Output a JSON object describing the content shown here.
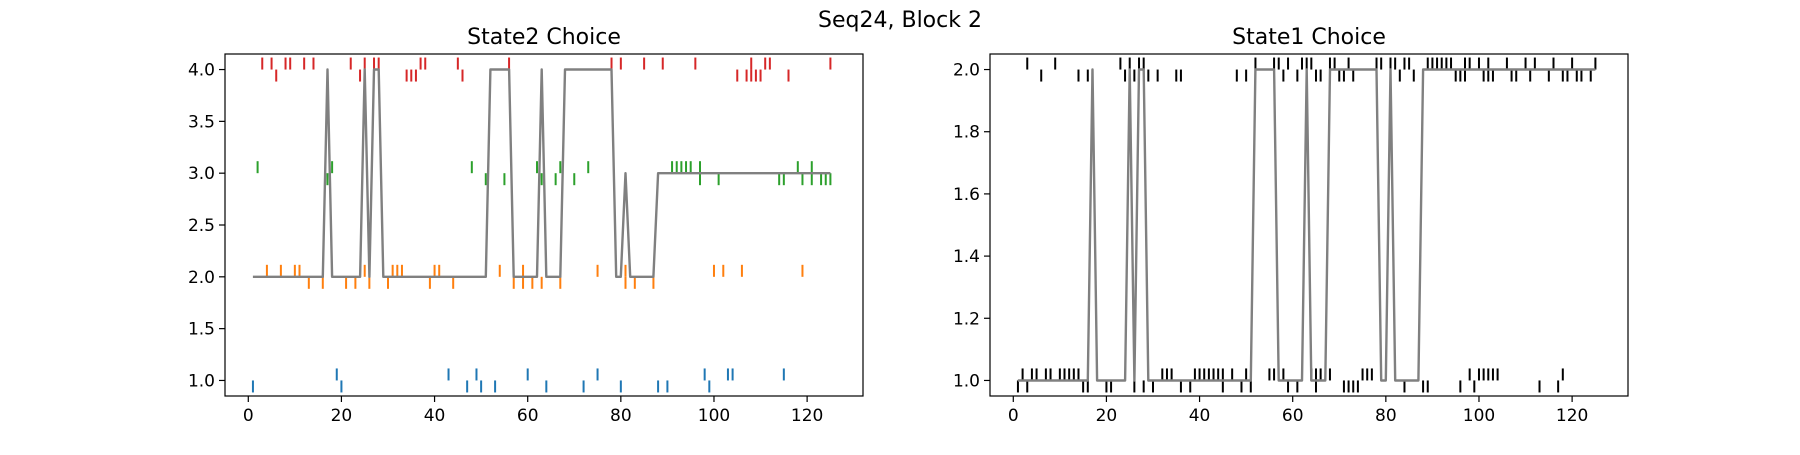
{
  "figure": {
    "suptitle": "Seq24, Block 2"
  },
  "chart_data": [
    {
      "type": "line",
      "title": "State2 Choice",
      "xlabel": "",
      "ylabel": "",
      "xlim": [
        -5,
        132
      ],
      "ylim": [
        0.85,
        4.15
      ],
      "x_ticks": [
        0,
        20,
        40,
        60,
        80,
        100,
        120
      ],
      "y_ticks": [
        1.0,
        1.5,
        2.0,
        2.5,
        3.0,
        3.5,
        4.0
      ],
      "x_tick_labels": [
        "0",
        "20",
        "40",
        "60",
        "80",
        "100",
        "120"
      ],
      "y_tick_labels": [
        "1.0",
        "1.5",
        "2.0",
        "2.5",
        "3.0",
        "3.5",
        "4.0"
      ],
      "grid": false,
      "line_color": "#808080",
      "line": {
        "x": [
          1,
          16,
          17,
          18,
          24,
          25,
          26,
          27,
          28,
          29,
          51,
          52,
          56,
          57,
          62,
          63,
          64,
          67,
          68,
          78,
          79,
          80,
          81,
          82,
          87,
          88,
          125
        ],
        "y": [
          2,
          2,
          4,
          2,
          2,
          4,
          2,
          4,
          4,
          2,
          2,
          4,
          4,
          2,
          2,
          4,
          2,
          2,
          4,
          4,
          2,
          2,
          3,
          2,
          2,
          3,
          3
        ]
      },
      "tick_series": [
        {
          "value": 4,
          "color": "#d62728",
          "x_above": [
            3,
            5,
            8,
            9,
            12,
            14,
            22,
            25,
            27,
            28,
            37,
            38,
            45,
            56,
            78,
            80,
            85,
            89,
            96,
            108,
            111,
            112,
            125
          ],
          "x_below": [
            6,
            24,
            34,
            35,
            36,
            46,
            105,
            107,
            108,
            109,
            110,
            116
          ]
        },
        {
          "value": 3,
          "color": "#2ca02c",
          "x_above": [
            2,
            18,
            48,
            62,
            67,
            73,
            91,
            92,
            93,
            94,
            95,
            97,
            118,
            121
          ],
          "x_below": [
            17,
            51,
            55,
            63,
            66,
            70,
            97,
            101,
            114,
            115,
            119,
            121,
            123,
            124,
            125
          ]
        },
        {
          "value": 2,
          "color": "#ff7f0e",
          "x_above": [
            4,
            7,
            10,
            11,
            25,
            31,
            32,
            33,
            40,
            41,
            54,
            59,
            75,
            81,
            100,
            102,
            106,
            119
          ],
          "x_below": [
            13,
            16,
            21,
            23,
            26,
            30,
            39,
            44,
            57,
            59,
            61,
            63,
            67,
            81,
            83,
            87
          ]
        },
        {
          "value": 1,
          "color": "#1f77b4",
          "x_above": [
            19,
            43,
            49,
            60,
            75,
            98,
            103,
            104,
            115
          ],
          "x_below": [
            1,
            20,
            47,
            50,
            53,
            64,
            72,
            80,
            88,
            90,
            99
          ]
        }
      ]
    },
    {
      "type": "line",
      "title": "State1 Choice",
      "xlabel": "",
      "ylabel": "",
      "xlim": [
        -5,
        132
      ],
      "ylim": [
        0.95,
        2.05
      ],
      "x_ticks": [
        0,
        20,
        40,
        60,
        80,
        100,
        120
      ],
      "y_ticks": [
        1.0,
        1.2,
        1.4,
        1.6,
        1.8,
        2.0
      ],
      "x_tick_labels": [
        "0",
        "20",
        "40",
        "60",
        "80",
        "100",
        "120"
      ],
      "y_tick_labels": [
        "1.0",
        "1.2",
        "1.4",
        "1.6",
        "1.8",
        "2.0"
      ],
      "grid": false,
      "line_color": "#808080",
      "line": {
        "x": [
          1,
          16,
          17,
          18,
          24,
          25,
          26,
          27,
          28,
          29,
          51,
          52,
          56,
          57,
          62,
          63,
          64,
          67,
          68,
          78,
          79,
          80,
          81,
          82,
          87,
          88,
          125
        ],
        "y": [
          1,
          1,
          2,
          1,
          1,
          2,
          1,
          2,
          2,
          1,
          1,
          2,
          2,
          1,
          1,
          2,
          1,
          1,
          2,
          2,
          1,
          1,
          2,
          1,
          1,
          2,
          2
        ]
      },
      "tick_series": [
        {
          "value": 2,
          "color": "#000000",
          "x_above": [
            3,
            9,
            23,
            25,
            27,
            28,
            52,
            56,
            57,
            59,
            62,
            63,
            64,
            68,
            69,
            72,
            78,
            79,
            81,
            82,
            84,
            85,
            89,
            90,
            91,
            92,
            93,
            94,
            97,
            98,
            100,
            102,
            106,
            110,
            112,
            116,
            120,
            125
          ],
          "x_below": [
            6,
            14,
            16,
            17,
            24,
            26,
            29,
            31,
            35,
            36,
            48,
            50,
            58,
            61,
            65,
            66,
            70,
            71,
            73,
            83,
            86,
            95,
            96,
            97,
            101,
            102,
            103,
            107,
            108,
            111,
            115,
            118,
            119,
            121,
            122,
            124
          ]
        },
        {
          "value": 1,
          "color": "#000000",
          "x_above": [
            2,
            4,
            5,
            7,
            8,
            10,
            11,
            12,
            13,
            14,
            32,
            33,
            34,
            39,
            40,
            41,
            42,
            43,
            44,
            45,
            47,
            50,
            55,
            56,
            58,
            64,
            65,
            66,
            68,
            75,
            76,
            77,
            98,
            100,
            101,
            102,
            103,
            104,
            118
          ],
          "x_below": [
            1,
            3,
            15,
            16,
            20,
            21,
            26,
            28,
            30,
            36,
            38,
            45,
            49,
            51,
            59,
            61,
            65,
            71,
            72,
            73,
            74,
            84,
            88,
            89,
            96,
            99,
            113,
            117
          ]
        }
      ]
    }
  ]
}
